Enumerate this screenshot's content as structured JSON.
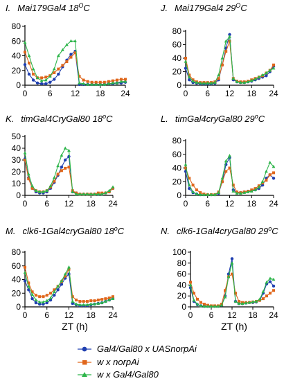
{
  "xlabel": "ZT (h)",
  "legend": [
    {
      "label": "Gal4/Gal80 x UASnorpAi",
      "color": "#1f3fb0",
      "marker": "circle"
    },
    {
      "label": "w x norpAi",
      "color": "#e0661b",
      "marker": "square"
    },
    {
      "label": "w x Gal4/Gal80",
      "color": "#2db54a",
      "marker": "triangle"
    }
  ],
  "chart_data": [
    {
      "type": "line",
      "letter": "I.",
      "title_main": "Mai179Gal4 18",
      "title_sup": "O",
      "title_end": "C",
      "x": [
        0,
        1,
        2,
        3,
        4,
        5,
        6,
        7,
        8,
        9,
        10,
        11,
        12,
        13,
        14,
        15,
        16,
        17,
        18,
        19,
        20,
        21,
        22,
        23,
        24
      ],
      "ylim": [
        0,
        80
      ],
      "yticks": [
        0,
        20,
        40,
        60,
        80
      ],
      "xticks": [
        0,
        6,
        12,
        18,
        24
      ],
      "series": [
        {
          "values": [
            28,
            15,
            7,
            3,
            2,
            2,
            4,
            8,
            15,
            25,
            34,
            42,
            46,
            1,
            1,
            1,
            1,
            1,
            1,
            1,
            2,
            2,
            3,
            3,
            4
          ]
        },
        {
          "values": [
            45,
            30,
            15,
            10,
            10,
            11,
            13,
            17,
            22,
            27,
            32,
            38,
            44,
            12,
            7,
            5,
            4,
            4,
            4,
            4,
            5,
            6,
            7,
            8,
            8
          ]
        },
        {
          "values": [
            58,
            40,
            22,
            10,
            6,
            7,
            12,
            22,
            40,
            48,
            55,
            60,
            60,
            3,
            2,
            1,
            1,
            1,
            1,
            1,
            2,
            3,
            3,
            5,
            5
          ]
        }
      ]
    },
    {
      "type": "line",
      "letter": "J.",
      "title_main": "Mai179Gal4 29",
      "title_sup": "O",
      "title_end": "C",
      "x": [
        0,
        1,
        2,
        3,
        4,
        5,
        6,
        7,
        8,
        9,
        10,
        11,
        12,
        13,
        14,
        15,
        16,
        17,
        18,
        19,
        20,
        21,
        22,
        23,
        24
      ],
      "ylim": [
        0,
        80
      ],
      "yticks": [
        0,
        20,
        40,
        60,
        80
      ],
      "xticks": [
        0,
        6,
        12,
        18,
        24
      ],
      "series": [
        {
          "values": [
            25,
            8,
            4,
            3,
            2,
            2,
            2,
            2,
            3,
            8,
            30,
            55,
            75,
            8,
            5,
            4,
            4,
            5,
            6,
            8,
            10,
            12,
            14,
            20,
            28
          ]
        },
        {
          "values": [
            40,
            15,
            8,
            5,
            4,
            4,
            4,
            4,
            5,
            10,
            30,
            50,
            65,
            10,
            6,
            5,
            5,
            6,
            8,
            10,
            12,
            14,
            18,
            22,
            30
          ]
        },
        {
          "values": [
            35,
            12,
            6,
            4,
            3,
            3,
            3,
            3,
            4,
            15,
            40,
            65,
            72,
            10,
            5,
            4,
            4,
            5,
            7,
            9,
            12,
            15,
            18,
            22,
            25
          ]
        }
      ]
    },
    {
      "type": "line",
      "letter": "K.",
      "title_main": "timGal4CryGal80 18",
      "title_sup": "o",
      "title_end": "C",
      "x": [
        0,
        1,
        2,
        3,
        4,
        5,
        6,
        7,
        8,
        9,
        10,
        11,
        12,
        13,
        14,
        15,
        16,
        17,
        18,
        19,
        20,
        21,
        22,
        23,
        24
      ],
      "ylim": [
        0,
        50
      ],
      "yticks": [
        0,
        10,
        20,
        30,
        40,
        50
      ],
      "xticks": [
        0,
        6,
        12,
        18,
        24
      ],
      "series": [
        {
          "values": [
            31,
            15,
            6,
            3,
            2,
            2,
            3,
            6,
            11,
            17,
            24,
            30,
            33,
            3,
            2,
            1,
            1,
            1,
            1,
            1,
            1,
            1,
            2,
            3,
            6
          ]
        },
        {
          "values": [
            30,
            14,
            6,
            4,
            3,
            3,
            4,
            7,
            12,
            18,
            21,
            23,
            24,
            4,
            2,
            1,
            1,
            1,
            1,
            1,
            2,
            2,
            2,
            3,
            6
          ]
        },
        {
          "values": [
            36,
            18,
            8,
            4,
            3,
            3,
            4,
            8,
            15,
            25,
            34,
            40,
            38,
            3,
            1,
            1,
            1,
            1,
            1,
            1,
            1,
            1,
            2,
            4,
            7
          ]
        }
      ]
    },
    {
      "type": "line",
      "letter": "L.",
      "title_main": "timGal4cryGal80  29",
      "title_sup": "o",
      "title_end": "C",
      "x": [
        0,
        1,
        2,
        3,
        4,
        5,
        6,
        7,
        8,
        9,
        10,
        11,
        12,
        13,
        14,
        15,
        16,
        17,
        18,
        19,
        20,
        21,
        22,
        23,
        24
      ],
      "ylim": [
        0,
        80
      ],
      "yticks": [
        0,
        20,
        40,
        60,
        80
      ],
      "xticks": [
        0,
        6,
        12,
        18,
        24
      ],
      "series": [
        {
          "values": [
            35,
            10,
            4,
            2,
            1,
            1,
            1,
            1,
            1,
            3,
            20,
            45,
            55,
            8,
            4,
            4,
            5,
            6,
            7,
            8,
            10,
            15,
            25,
            30,
            25
          ]
        },
        {
          "values": [
            40,
            25,
            15,
            8,
            4,
            2,
            1,
            1,
            1,
            5,
            20,
            35,
            40,
            15,
            5,
            4,
            5,
            6,
            8,
            10,
            14,
            18,
            22,
            30,
            33
          ]
        },
        {
          "values": [
            45,
            15,
            5,
            2,
            1,
            1,
            1,
            1,
            1,
            4,
            25,
            50,
            58,
            6,
            3,
            3,
            4,
            5,
            6,
            8,
            12,
            20,
            35,
            48,
            42
          ]
        }
      ]
    },
    {
      "type": "line",
      "letter": "M.",
      "title_main": "clk6-1Gal4cryGal80  18",
      "title_sup": "o",
      "title_end": "C",
      "x": [
        0,
        1,
        2,
        3,
        4,
        5,
        6,
        7,
        8,
        9,
        10,
        11,
        12,
        13,
        14,
        15,
        16,
        17,
        18,
        19,
        20,
        21,
        22,
        23,
        24
      ],
      "ylim": [
        0,
        80
      ],
      "yticks": [
        0,
        20,
        40,
        60,
        80
      ],
      "xticks": [
        0,
        6,
        12,
        18,
        24
      ],
      "series": [
        {
          "values": [
            38,
            25,
            12,
            6,
            4,
            4,
            6,
            10,
            17,
            25,
            33,
            42,
            48,
            5,
            3,
            2,
            2,
            2,
            3,
            4,
            5,
            6,
            8,
            10,
            13
          ]
        },
        {
          "values": [
            58,
            35,
            22,
            17,
            15,
            15,
            17,
            20,
            25,
            30,
            37,
            45,
            55,
            15,
            10,
            8,
            8,
            8,
            9,
            9,
            10,
            11,
            12,
            13,
            15
          ]
        },
        {
          "values": [
            50,
            30,
            18,
            10,
            7,
            7,
            9,
            13,
            22,
            30,
            38,
            48,
            58,
            8,
            4,
            3,
            3,
            3,
            4,
            4,
            5,
            6,
            8,
            10,
            12
          ]
        }
      ]
    },
    {
      "type": "line",
      "letter": "N.",
      "title_main": "clk6-1Gal4cryGal80  29",
      "title_sup": "o",
      "title_end": "C",
      "x": [
        0,
        1,
        2,
        3,
        4,
        5,
        6,
        7,
        8,
        9,
        10,
        11,
        12,
        13,
        14,
        15,
        16,
        17,
        18,
        19,
        20,
        21,
        22,
        23,
        24
      ],
      "ylim": [
        0,
        100
      ],
      "yticks": [
        0,
        20,
        40,
        60,
        80,
        100
      ],
      "xticks": [
        0,
        6,
        12,
        18,
        24
      ],
      "series": [
        {
          "values": [
            35,
            10,
            4,
            2,
            1,
            1,
            1,
            1,
            1,
            3,
            20,
            60,
            88,
            10,
            6,
            6,
            7,
            8,
            8,
            9,
            12,
            25,
            42,
            46,
            38
          ]
        },
        {
          "values": [
            45,
            25,
            14,
            8,
            5,
            3,
            2,
            2,
            2,
            5,
            30,
            55,
            60,
            25,
            10,
            8,
            8,
            8,
            9,
            10,
            12,
            15,
            20,
            25,
            30
          ]
        },
        {
          "values": [
            40,
            12,
            5,
            2,
            1,
            1,
            1,
            1,
            1,
            3,
            18,
            55,
            80,
            10,
            6,
            6,
            7,
            8,
            9,
            10,
            14,
            28,
            45,
            52,
            50
          ]
        }
      ]
    }
  ]
}
